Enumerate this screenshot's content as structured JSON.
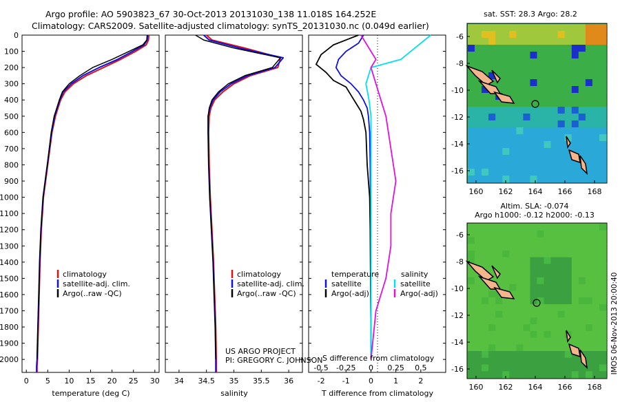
{
  "header": {
    "line1": "Argo profile: AO 5903823_67 30-Oct-2013 20131030_138 11.018S 164.252E",
    "line2": "Climatology: CARS2009. Satellite-adjusted climatology: synTS_20131030.nc (0.049d earlier)"
  },
  "depth_ticks": [
    0,
    100,
    200,
    300,
    400,
    500,
    600,
    700,
    800,
    900,
    1000,
    1100,
    1200,
    1300,
    1400,
    1500,
    1600,
    1700,
    1800,
    1900,
    2000
  ],
  "colors": {
    "climatology": "#e01010",
    "satellite": "#1010e0",
    "argo": "#000000",
    "sat_salinity": "#00e0f0",
    "argo_salinity": "#e010e0"
  },
  "panels": {
    "temperature": {
      "xlabel": "temperature (deg C)",
      "xticks": [
        0,
        5,
        10,
        15,
        20,
        25,
        30
      ],
      "legend": [
        "climatology",
        "satellite-adj. clim.",
        "Argo(..raw -QC)"
      ]
    },
    "salinity": {
      "xlabel": "salinity",
      "xticks": [
        "34",
        "34.5",
        "35",
        "35.5",
        "36"
      ],
      "legend": [
        "climatology",
        "satellite-adj. clim.",
        "Argo(..raw -QC)"
      ],
      "credit1": "US ARGO PROJECT",
      "credit2": "PI: GREGORY C. JOHNSON"
    },
    "difference": {
      "xlabel": "T difference from climatology",
      "top_label": "S difference from climatology",
      "xticks_T": [
        "-2",
        "-1",
        "0",
        "1",
        "2"
      ],
      "xticks_S": [
        "-0.5",
        "-0.25",
        "0",
        "0.25",
        "0.5"
      ],
      "legend_temp_title": "temperature",
      "legend_temp": [
        "satellite",
        "Argo(-adj)"
      ],
      "legend_sal_title": "salinity",
      "legend_sal": [
        "satellite",
        "Argo(-adj)"
      ]
    }
  },
  "maps": {
    "sst_title": "sat. SST: 28.3 Argo: 28.2",
    "sla_title1": "Altim. SLA: -0.074",
    "sla_title2": "Argo h1000: -0.12 h2000: -0.13",
    "lon_ticks": [
      "160",
      "162",
      "164",
      "166",
      "168"
    ],
    "lat_ticks": [
      "-6",
      "-8",
      "-10",
      "-12",
      "-14",
      "-16"
    ],
    "side_stamp": "IMOS 06-Nov-2013 20:00:40"
  },
  "chart_data": [
    {
      "type": "line",
      "title": "",
      "xlabel": "temperature (deg C)",
      "ylabel": "",
      "xlim": [
        -1,
        31
      ],
      "ylim": [
        2080,
        0
      ],
      "series": [
        {
          "name": "climatology",
          "x": [
            28.6,
            28.5,
            28.0,
            25.5,
            22.0,
            18.0,
            14.0,
            11.0,
            9.0,
            8.0,
            7.4,
            6.8,
            6.0,
            5.0,
            4.0,
            3.5,
            3.2,
            3.0,
            2.8,
            2.6,
            2.5,
            2.5
          ],
          "y": [
            0,
            30,
            60,
            100,
            150,
            200,
            250,
            300,
            350,
            400,
            450,
            500,
            600,
            800,
            1000,
            1200,
            1400,
            1600,
            1800,
            2000,
            2040,
            2080
          ]
        },
        {
          "name": "satellite-adj. clim.",
          "x": [
            28.3,
            28.2,
            27.5,
            24.8,
            21.3,
            17.0,
            13.2,
            10.5,
            8.6,
            7.8,
            7.2,
            6.6,
            5.9,
            4.9,
            3.9,
            3.4,
            3.1,
            2.9,
            2.7,
            2.5,
            2.4,
            2.4
          ],
          "y": [
            0,
            30,
            60,
            100,
            150,
            200,
            250,
            300,
            350,
            400,
            450,
            500,
            600,
            800,
            1000,
            1200,
            1400,
            1600,
            1800,
            2000,
            2040,
            2080
          ]
        },
        {
          "name": "Argo(..raw -QC)",
          "x": [
            28.2,
            28.1,
            27.2,
            24.0,
            20.0,
            15.5,
            12.5,
            10.0,
            8.4,
            7.7,
            7.1,
            6.5,
            5.8,
            4.9,
            3.9,
            3.4,
            3.1,
            2.9,
            2.7,
            2.5
          ],
          "y": [
            0,
            30,
            60,
            100,
            150,
            200,
            250,
            300,
            350,
            400,
            450,
            500,
            600,
            800,
            1000,
            1200,
            1400,
            1600,
            1800,
            2000
          ]
        }
      ]
    },
    {
      "type": "line",
      "title": "",
      "xlabel": "salinity",
      "ylabel": "",
      "xlim": [
        33.75,
        36.25
      ],
      "ylim": [
        2080,
        0
      ],
      "series": [
        {
          "name": "climatology",
          "x": [
            34.5,
            34.6,
            35.2,
            35.85,
            35.8,
            35.3,
            35.0,
            34.8,
            34.65,
            34.58,
            34.55,
            34.54,
            34.55,
            34.57,
            34.6,
            34.63,
            34.65,
            34.67,
            34.68,
            34.68
          ],
          "y": [
            0,
            30,
            80,
            140,
            200,
            250,
            300,
            350,
            400,
            450,
            500,
            600,
            800,
            1000,
            1200,
            1400,
            1600,
            1800,
            2000,
            2080
          ]
        },
        {
          "name": "satellite-adj. clim.",
          "x": [
            34.45,
            34.55,
            35.1,
            35.9,
            35.75,
            35.25,
            34.95,
            34.75,
            34.62,
            34.56,
            34.53,
            34.53,
            34.54,
            34.56,
            34.59,
            34.62,
            34.64,
            34.66,
            34.67,
            34.67
          ],
          "y": [
            0,
            30,
            80,
            140,
            200,
            250,
            300,
            350,
            400,
            450,
            500,
            600,
            800,
            1000,
            1200,
            1400,
            1600,
            1800,
            2000,
            2080
          ]
        },
        {
          "name": "Argo(..raw -QC)",
          "x": [
            34.3,
            34.45,
            35.0,
            35.85,
            35.7,
            35.2,
            34.9,
            34.72,
            34.6,
            34.55,
            34.53,
            34.53,
            34.54,
            34.56,
            34.59,
            34.62,
            34.64,
            34.66,
            34.67
          ],
          "y": [
            0,
            30,
            80,
            140,
            200,
            250,
            300,
            350,
            400,
            450,
            500,
            600,
            800,
            1000,
            1200,
            1400,
            1600,
            1800,
            2000
          ]
        }
      ]
    },
    {
      "type": "line",
      "title": "",
      "xlabel": "T difference from climatology",
      "ylabel": "",
      "xlim": [
        -2.5,
        3
      ],
      "ylim": [
        2080,
        0
      ],
      "series": [
        {
          "name": "temperature satellite",
          "x": [
            -0.3,
            -0.5,
            -1.0,
            -1.3,
            -1.4,
            -1.2,
            -0.8,
            -0.5,
            -0.3,
            -0.15,
            -0.1,
            -0.05,
            -0.03,
            -0.02,
            -0.02,
            -0.01,
            -0.01,
            0,
            0
          ],
          "y": [
            0,
            50,
            100,
            150,
            200,
            250,
            300,
            350,
            400,
            450,
            500,
            600,
            800,
            1000,
            1200,
            1400,
            1600,
            1800,
            2000
          ]
        },
        {
          "name": "temperature Argo(-adj)",
          "x": [
            -0.5,
            -1.5,
            -2.0,
            -2.2,
            -1.8,
            -1.5,
            -1.0,
            -0.8,
            -0.6,
            -0.4,
            -0.3,
            -0.2,
            -0.15,
            -0.05,
            -0.03,
            -0.02,
            -0.01,
            0,
            0
          ],
          "y": [
            0,
            60,
            120,
            180,
            230,
            280,
            320,
            370,
            420,
            470,
            520,
            600,
            800,
            1000,
            1200,
            1400,
            1600,
            1800,
            2000
          ]
        },
        {
          "name": "salinity satellite",
          "x": [
            0.6,
            0.4,
            0.3,
            0.0,
            -0.05,
            -0.02,
            0,
            0,
            0,
            0,
            0,
            0,
            0,
            0
          ],
          "y": [
            0,
            100,
            150,
            200,
            300,
            400,
            500,
            700,
            900,
            1100,
            1300,
            1500,
            1700,
            2000
          ]
        },
        {
          "name": "salinity Argo(-adj)",
          "x": [
            -0.1,
            0,
            0.05,
            0.0,
            0.05,
            0.1,
            0.15,
            0.2,
            0.25,
            0.2,
            0.2,
            0.15,
            0.05,
            0
          ],
          "y": [
            0,
            100,
            150,
            200,
            300,
            400,
            500,
            700,
            900,
            1100,
            1300,
            1500,
            1700,
            2000
          ]
        }
      ]
    }
  ]
}
